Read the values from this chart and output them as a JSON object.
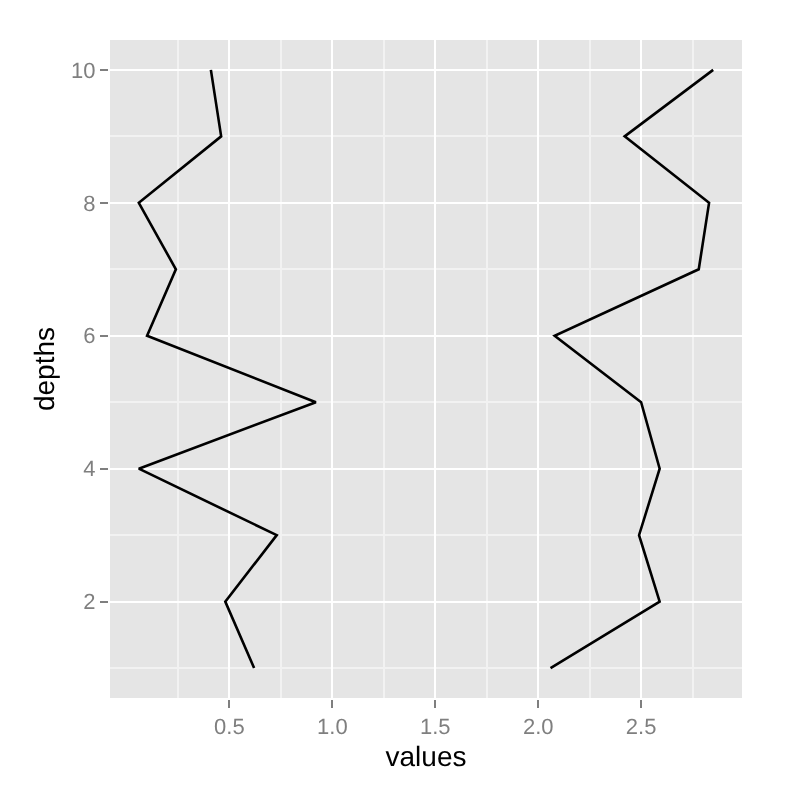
{
  "chart_data": {
    "type": "line",
    "xlabel": "values",
    "ylabel": "depths",
    "series": [
      {
        "color": "#000000",
        "x": [
          0.62,
          0.48,
          0.73,
          0.06,
          0.92,
          0.1,
          0.24,
          0.06,
          0.46,
          0.41
        ],
        "values": [
          1,
          2,
          3,
          4,
          5,
          6,
          7,
          8,
          9,
          10
        ]
      },
      {
        "color": "#000000",
        "x": [
          2.06,
          2.59,
          2.49,
          2.59,
          2.5,
          2.08,
          2.78,
          2.83,
          2.42,
          2.85
        ],
        "values": [
          1,
          2,
          3,
          4,
          5,
          6,
          7,
          8,
          9,
          10
        ]
      }
    ],
    "xlim": [
      -0.08,
      2.99
    ],
    "ylim": [
      0.55,
      10.45
    ],
    "xticks": [
      0.5,
      {
        "value": 1,
        "label": "1.0"
      },
      1.5,
      {
        "value": 2,
        "label": "2.0"
      },
      2.5
    ],
    "yticks": [
      2,
      4,
      6,
      8,
      10
    ],
    "grid": true,
    "marker": "none",
    "line_style": "solid"
  }
}
